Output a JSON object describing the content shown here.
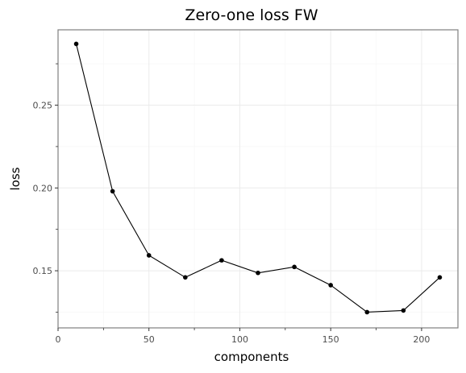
{
  "chart_data": {
    "type": "line",
    "title": "Zero-one loss FW",
    "xlabel": "components",
    "ylabel": "loss",
    "x": [
      10,
      30,
      50,
      70,
      90,
      110,
      130,
      150,
      170,
      190,
      210
    ],
    "series": [
      {
        "values": [
          0.287,
          0.198,
          0.1593,
          0.146,
          0.1563,
          0.1487,
          0.1523,
          0.1413,
          0.125,
          0.126,
          0.146
        ]
      }
    ],
    "xlim": [
      0,
      220
    ],
    "ylim": [
      0.1155,
      0.2955
    ],
    "x_ticks": [
      0,
      50,
      100,
      150,
      200
    ],
    "x_tick_labels": [
      "0",
      "50",
      "100",
      "150",
      "200"
    ],
    "y_ticks": [
      0.15,
      0.2,
      0.25
    ],
    "y_tick_labels": [
      "0.15",
      "0.20",
      "0.25"
    ],
    "x_minor_ticks": [
      25,
      75,
      125,
      175
    ],
    "y_minor_ticks": [
      0.125,
      0.175,
      0.225,
      0.275
    ],
    "grid": true,
    "legend": "none",
    "colors": {
      "line": "#000000",
      "point": "#000000",
      "major_grid": "#ebebeb",
      "minor_grid": "#f5f5f5",
      "panel_border": "#7f7f7f",
      "tick": "#333333"
    }
  }
}
